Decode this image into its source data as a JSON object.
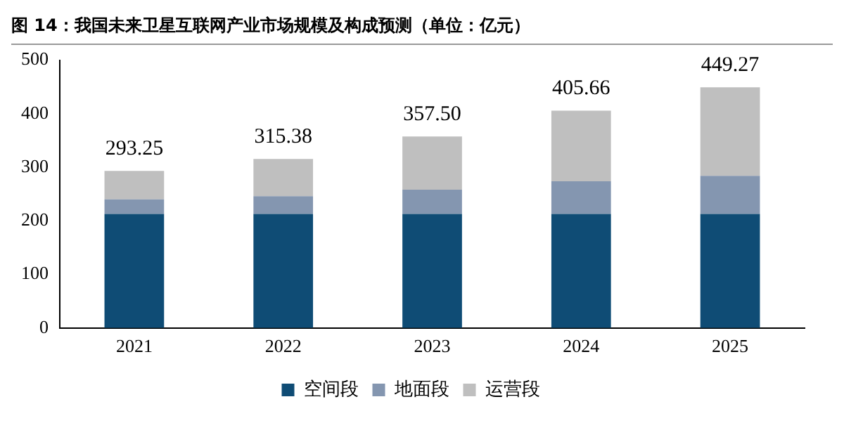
{
  "chart_data": {
    "type": "bar",
    "title": "图 14：我国未来卫星互联网产业市场规模及构成预测（单位：亿元）",
    "categories": [
      "2021",
      "2022",
      "2023",
      "2024",
      "2025"
    ],
    "stacked": true,
    "series": [
      {
        "name": "空间段",
        "color": "#0f4c75",
        "values": [
          213,
          213,
          213,
          213,
          213
        ]
      },
      {
        "name": "地面段",
        "color": "#8496b0",
        "values": [
          27,
          33,
          45,
          61,
          71
        ]
      },
      {
        "name": "运营段",
        "color": "#bfbfbf",
        "values": [
          53.25,
          69.38,
          99.5,
          131.66,
          165.27
        ]
      }
    ],
    "totals": [
      "293.25",
      "315.38",
      "357.50",
      "405.66",
      "449.27"
    ],
    "ylim": [
      0,
      500
    ],
    "yticks": [
      0,
      100,
      200,
      300,
      400,
      500
    ],
    "grid": false,
    "legend": "bottom"
  }
}
